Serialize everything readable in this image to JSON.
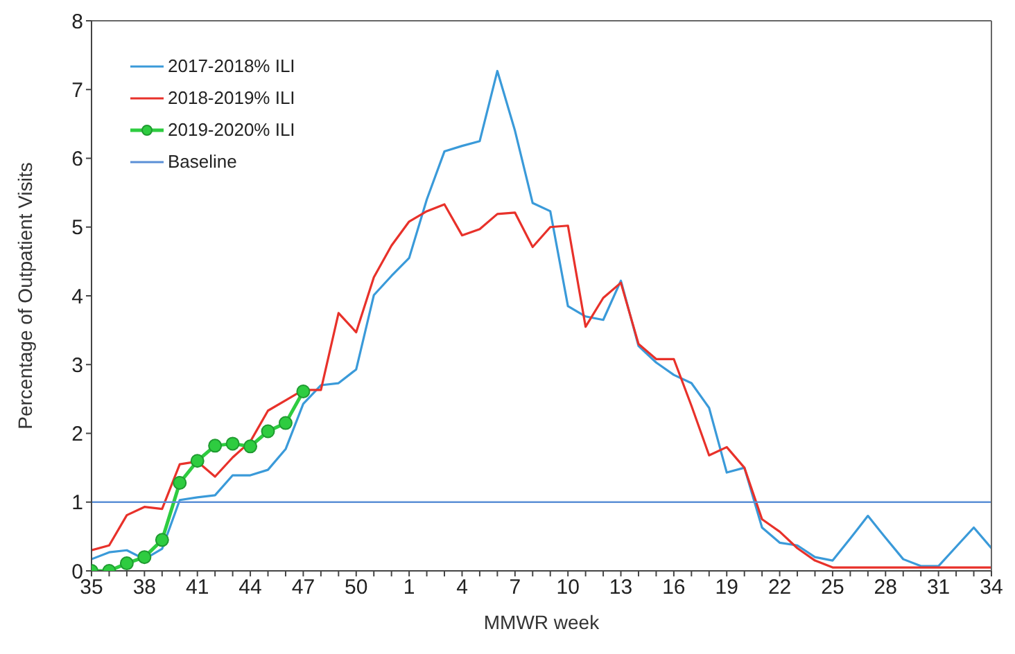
{
  "chart_data": {
    "type": "line",
    "xlabel": "MMWR week",
    "ylabel": "Percentage of Outpatient Visits",
    "categories": [
      "35",
      null,
      null,
      "38",
      null,
      null,
      "41",
      null,
      null,
      "44",
      null,
      null,
      "47",
      null,
      null,
      "50",
      null,
      null,
      "1",
      null,
      null,
      "4",
      null,
      null,
      "7",
      null,
      null,
      "10",
      null,
      null,
      "13",
      null,
      null,
      "16",
      null,
      null,
      "19",
      null,
      null,
      "22",
      null,
      null,
      "25",
      null,
      null,
      "28",
      null,
      null,
      "31",
      null,
      null,
      "34"
    ],
    "series": [
      {
        "name": "2017-2018% ILI",
        "color": "#3a9ad9",
        "marker": "none",
        "values": [
          0.17,
          0.27,
          0.3,
          0.17,
          0.32,
          1.03,
          1.07,
          1.1,
          1.39,
          1.39,
          1.47,
          1.77,
          2.43,
          2.7,
          2.73,
          2.93,
          4.01,
          4.29,
          4.55,
          5.4,
          6.1,
          6.18,
          6.25,
          7.27,
          6.4,
          5.35,
          5.23,
          3.85,
          3.7,
          3.65,
          4.22,
          3.27,
          3.03,
          2.85,
          2.73,
          2.37,
          1.43,
          1.5,
          0.63,
          0.41,
          0.37,
          0.2,
          0.15,
          0.47,
          0.8,
          0.48,
          0.17,
          0.07,
          0.07,
          0.35,
          0.63,
          0.33
        ]
      },
      {
        "name": "2018-2019% ILI",
        "color": "#e8312a",
        "marker": "none",
        "values": [
          0.3,
          0.37,
          0.81,
          0.93,
          0.9,
          1.55,
          1.59,
          1.37,
          1.65,
          1.88,
          2.33,
          2.48,
          2.63,
          2.63,
          3.75,
          3.47,
          4.27,
          4.73,
          5.08,
          5.23,
          5.33,
          4.88,
          4.97,
          5.19,
          5.21,
          4.71,
          5.0,
          5.02,
          3.55,
          3.97,
          4.19,
          3.3,
          3.08,
          3.08,
          2.4,
          1.68,
          1.8,
          1.5,
          0.75,
          0.57,
          0.33,
          0.15,
          0.05,
          0.05,
          0.05,
          0.05,
          0.05,
          0.05,
          0.05,
          0.05,
          0.05,
          0.05
        ]
      },
      {
        "name": "2019-2020% ILI",
        "color": "#2ecc40",
        "marker": "circle",
        "values": [
          0,
          0,
          0.11,
          0.2,
          0.45,
          1.28,
          1.6,
          1.82,
          1.85,
          1.81,
          2.03,
          2.15,
          2.61,
          null,
          null,
          null,
          null,
          null,
          null,
          null,
          null,
          null,
          null,
          null,
          null,
          null,
          null,
          null,
          null,
          null,
          null,
          null,
          null,
          null,
          null,
          null,
          null,
          null,
          null,
          null,
          null,
          null,
          null,
          null,
          null,
          null,
          null,
          null,
          null,
          null,
          null,
          null
        ]
      },
      {
        "name": "Baseline",
        "color": "#5b8fd6",
        "marker": "none",
        "values": [
          1,
          1,
          1,
          1,
          1,
          1,
          1,
          1,
          1,
          1,
          1,
          1,
          1,
          1,
          1,
          1,
          1,
          1,
          1,
          1,
          1,
          1,
          1,
          1,
          1,
          1,
          1,
          1,
          1,
          1,
          1,
          1,
          1,
          1,
          1,
          1,
          1,
          1,
          1,
          1,
          1,
          1,
          1,
          1,
          1,
          1,
          1,
          1,
          1,
          1,
          1,
          1
        ]
      }
    ],
    "ylim": [
      0,
      8
    ],
    "yticks": [
      0,
      1,
      2,
      3,
      4,
      5,
      6,
      7,
      8
    ],
    "grid": false,
    "legend": "top left"
  }
}
